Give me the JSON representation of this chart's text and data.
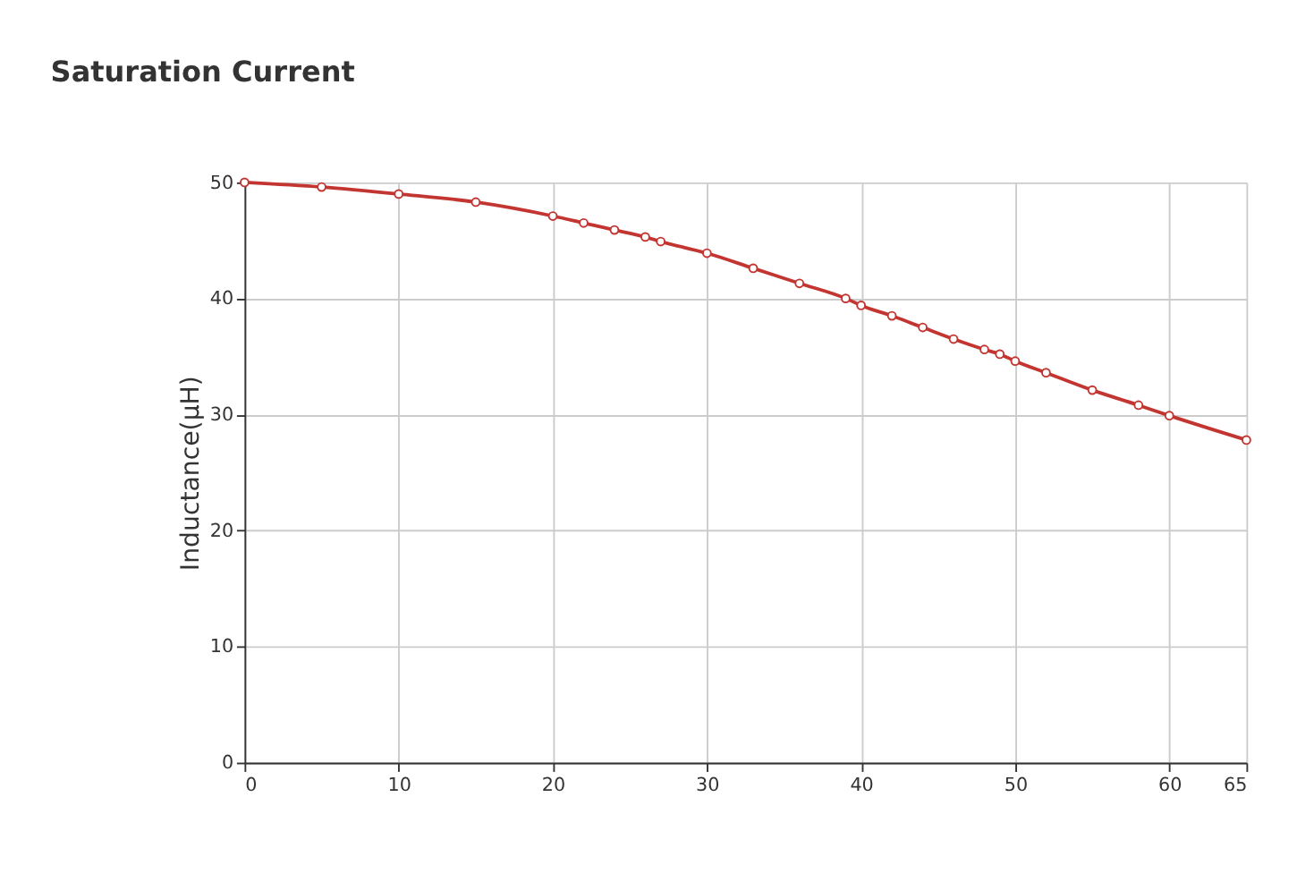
{
  "chart_data": {
    "type": "line",
    "title": "Saturation Current",
    "ylabel": "Inductance(μH)",
    "x": [
      0,
      5,
      10,
      15,
      20,
      22,
      24,
      26,
      27,
      30,
      33,
      36,
      39,
      40,
      42,
      44,
      46,
      48,
      49,
      50,
      52,
      55,
      58,
      60,
      65
    ],
    "series": [
      {
        "color": "#c23531",
        "values": [
          50.0,
          49.6,
          49.0,
          48.3,
          47.1,
          46.5,
          45.9,
          45.3,
          44.9,
          43.9,
          42.6,
          41.3,
          40.0,
          39.4,
          38.5,
          37.5,
          36.5,
          35.6,
          35.2,
          34.6,
          33.6,
          32.1,
          30.8,
          29.9,
          27.8
        ]
      }
    ],
    "xlim": [
      0,
      65
    ],
    "xticks": [
      0,
      10,
      20,
      30,
      40,
      50,
      60,
      65
    ],
    "ylim": [
      0,
      50
    ],
    "yticks": [
      0,
      10,
      20,
      30,
      40,
      50
    ],
    "grid": true,
    "marker": "circle",
    "line_style": "solid",
    "legend": false
  }
}
